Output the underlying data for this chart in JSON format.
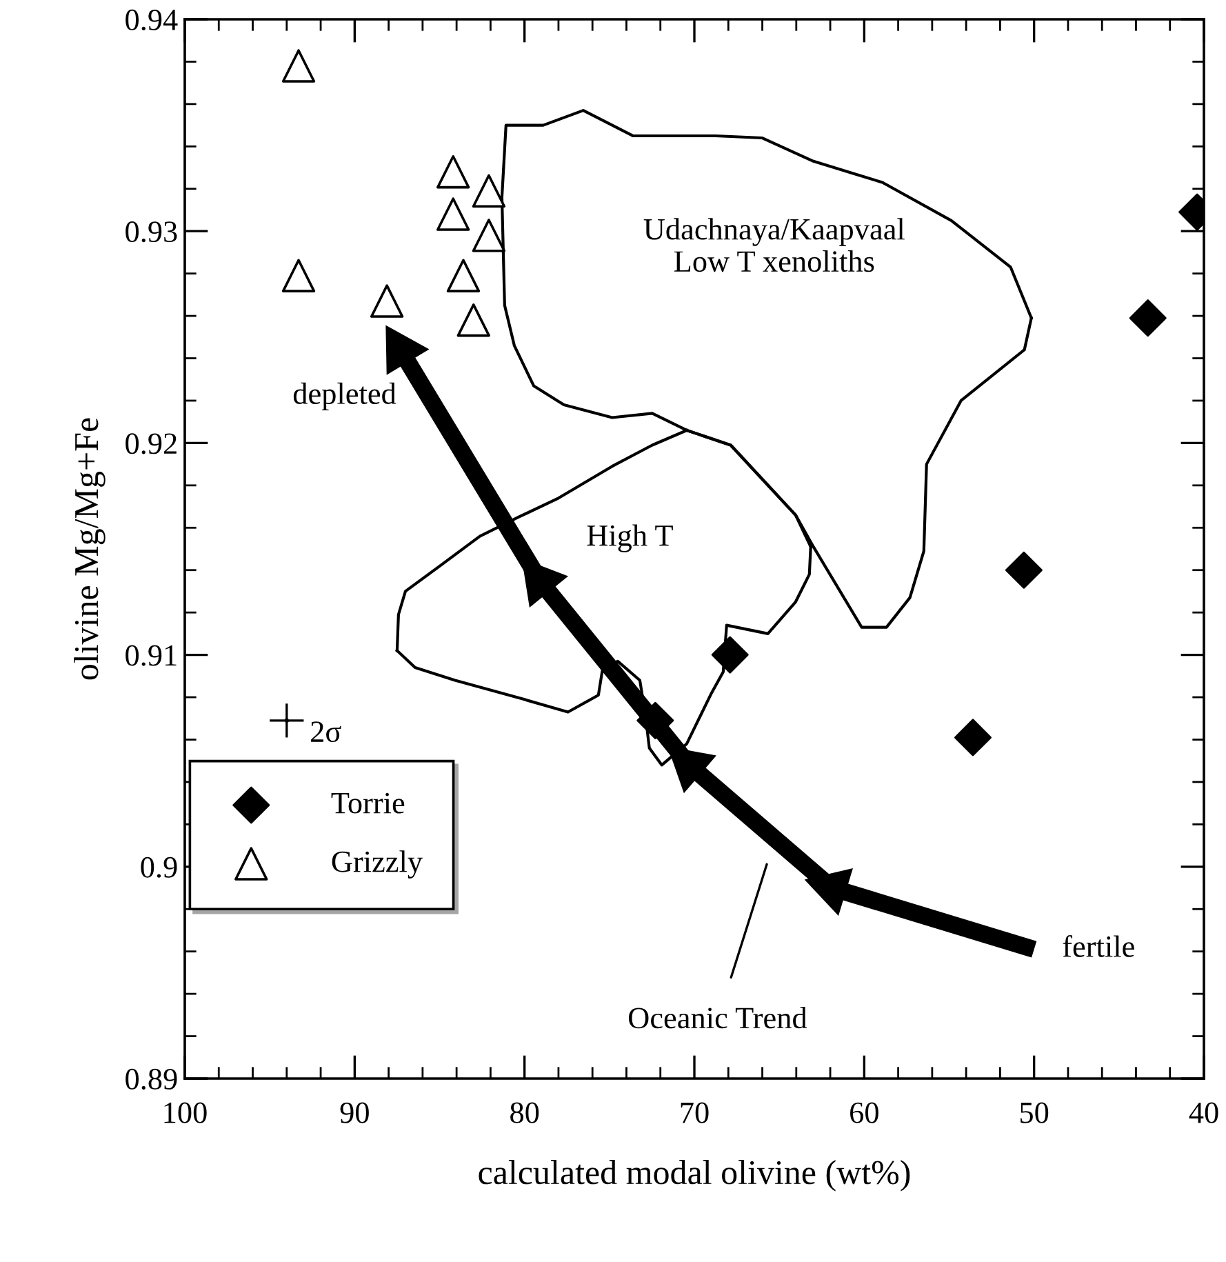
{
  "chart_data": {
    "type": "scatter",
    "xlabel": "calculated modal olivine (wt%)",
    "ylabel": "olivine Mg/Mg+Fe",
    "xlim": [
      100,
      40
    ],
    "xticks": [
      100,
      90,
      80,
      70,
      60,
      50,
      40
    ],
    "ylim": [
      0.89,
      0.94
    ],
    "yticks": [
      0.89,
      0.9,
      0.91,
      0.92,
      0.93,
      0.94
    ],
    "grid": false,
    "legend": "bottom left",
    "series": [
      {
        "name": "Torrie",
        "type": "scatter",
        "marker": "diamond",
        "color": "#000000",
        "x": [
          40.4,
          43.3,
          50.6,
          53.6,
          67.9,
          72.3
        ],
        "values": [
          0.9309,
          0.9259,
          0.914,
          0.9061,
          0.91,
          0.9069
        ]
      },
      {
        "name": "Grizzly",
        "type": "scatter",
        "marker": "triangle",
        "color": "#000000",
        "x": [
          93.3,
          93.3,
          88.1,
          84.2,
          82.1,
          84.2,
          82.1,
          83.6,
          83.0
        ],
        "values": [
          0.9378,
          0.9279,
          0.9267,
          0.9328,
          0.9319,
          0.9308,
          0.9298,
          0.9279,
          0.9258
        ]
      },
      {
        "name": "2σ",
        "marker": "cross",
        "color": "#000000",
        "x": [
          94.0
        ],
        "values": [
          0.9069
        ],
        "errors": [
          0.0008
        ],
        "xerrors": [
          1.0
        ]
      },
      {
        "type": "line",
        "color": "#000000",
        "x": [
          81.33,
          81.09,
          78.9,
          76.54,
          73.62,
          68.75,
          66.0,
          62.99,
          58.93,
          54.87,
          51.38,
          50.16
        ],
        "values": [
          0.9316,
          0.935,
          0.935,
          0.9357,
          0.9345,
          0.9345,
          0.9344,
          0.9333,
          0.9323,
          0.9305,
          0.9283,
          0.9259
        ]
      },
      {
        "type": "line",
        "color": "#000000",
        "x": [
          50.16,
          50.57,
          54.3,
          56.33,
          56.49,
          57.31,
          58.69,
          60.15,
          62.99,
          64.04,
          67.86,
          70.45,
          72.48,
          74.84,
          77.68,
          79.46,
          80.6,
          81.17,
          81.33
        ],
        "values": [
          0.9259,
          0.9244,
          0.922,
          0.919,
          0.9149,
          0.9127,
          0.9113,
          0.9113,
          0.9151,
          0.9166,
          0.9199,
          0.9206,
          0.9214,
          0.9212,
          0.9218,
          0.9227,
          0.9246,
          0.9265,
          0.9316
        ]
      },
      {
        "type": "line",
        "color": "#000000",
        "x": [
          70.45,
          72.48,
          74.84,
          78.0,
          80.36,
          82.63,
          84.98,
          87.01,
          87.42,
          87.5
        ],
        "values": [
          0.9206,
          0.9199,
          0.9189,
          0.9174,
          0.9165,
          0.9156,
          0.9142,
          0.913,
          0.9119,
          0.9102
        ]
      },
      {
        "type": "line",
        "color": "#000000",
        "x": [
          87.5,
          86.44,
          84.09,
          80.03,
          77.44,
          75.65,
          75.41,
          74.51,
          73.21,
          72.89,
          72.65,
          71.92,
          70.45,
          68.99,
          68.3,
          68.1,
          65.67,
          64.04,
          63.23,
          63.15
        ],
        "values": [
          0.9102,
          0.9094,
          0.9088,
          0.9079,
          0.9073,
          0.9081,
          0.9093,
          0.9097,
          0.9088,
          0.9072,
          0.9056,
          0.9048,
          0.9058,
          0.9082,
          0.9092,
          0.9114,
          0.911,
          0.9125,
          0.9138,
          0.9151
        ]
      },
      {
        "type": "line",
        "color": "#000000",
        "x": [
          63.15,
          64.04,
          67.86,
          70.45
        ],
        "values": [
          0.9151,
          0.9166,
          0.9199,
          0.9206
        ]
      },
      {
        "name": "Oceanic Trend",
        "type": "line",
        "marker": "triangle",
        "color": "#000000",
        "x": [
          50.0,
          61.9,
          70.3,
          79.1,
          87.3
        ],
        "values": [
          0.8961,
          0.899,
          0.9048,
          0.9135,
          0.9244
        ]
      }
    ],
    "annotations": [
      "Udachnaya/Kaapvaal\nLow T xenoliths",
      "High T",
      "depleted",
      "fertile"
    ]
  }
}
